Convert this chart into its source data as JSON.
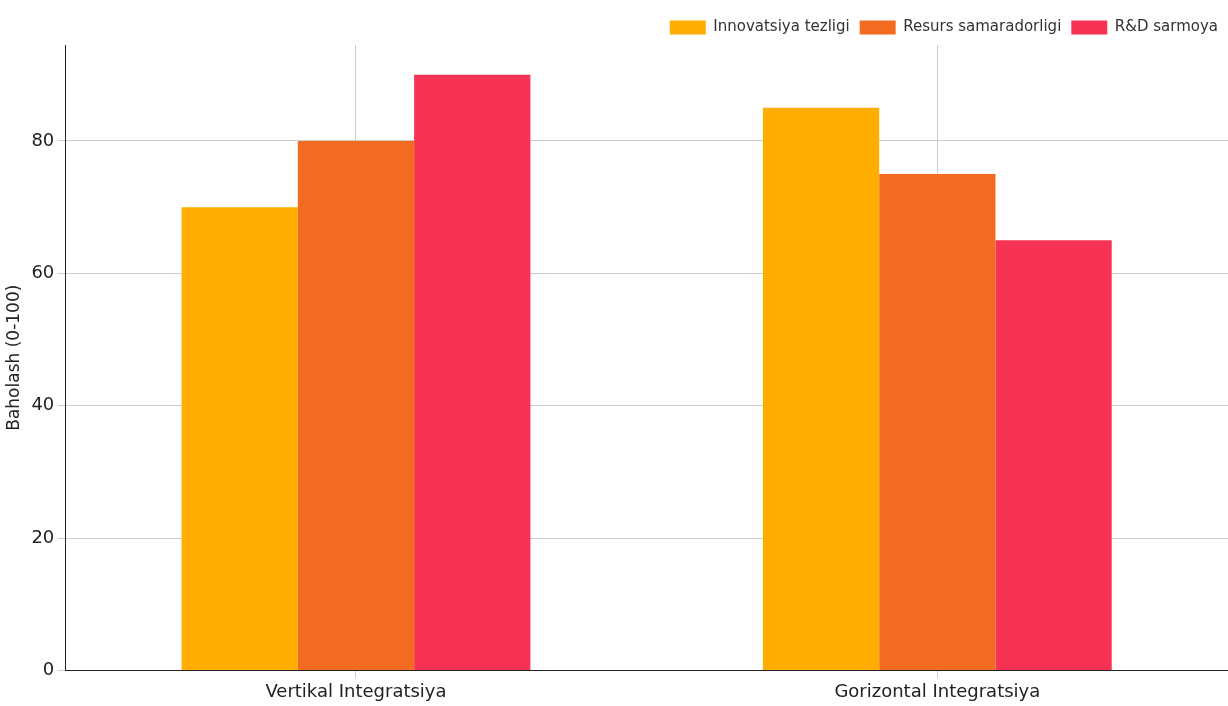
{
  "chart_data": {
    "type": "bar",
    "ylabel": "Baholash (0-100)",
    "categories": [
      "Vertikal Integratsiya",
      "Gorizontal Integratsiya"
    ],
    "series": [
      {
        "name": "Innovatsiya tezligi",
        "color": "#ffad00",
        "values": [
          70,
          85
        ]
      },
      {
        "name": "Resurs samaradorligi",
        "color": "#f26b21",
        "values": [
          80,
          75
        ]
      },
      {
        "name": "R&D sarmoya",
        "color": "#f63355",
        "values": [
          90,
          65
        ]
      }
    ],
    "ylim": [
      0,
      94.5
    ],
    "yticks": [
      0,
      20,
      40,
      60,
      80
    ],
    "grid": true,
    "legend": "top right"
  }
}
